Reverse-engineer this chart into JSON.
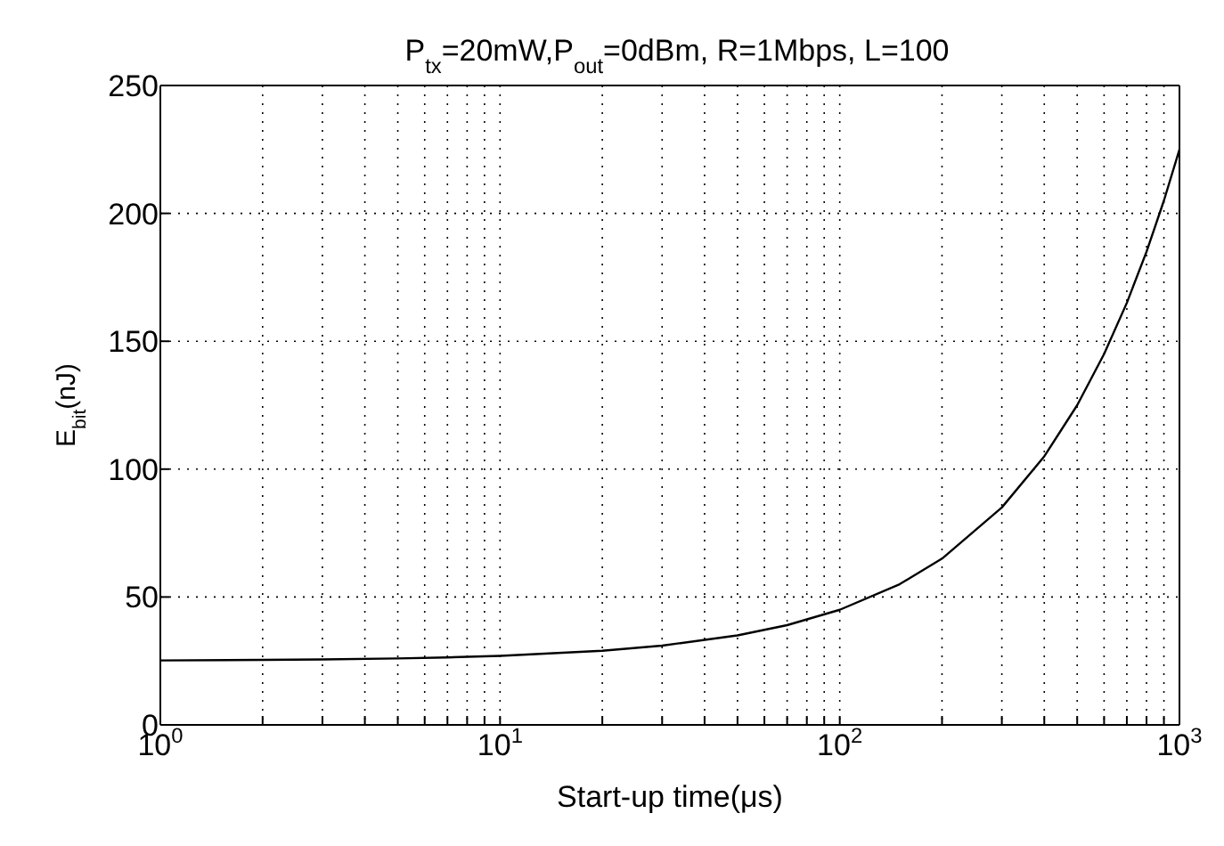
{
  "chart_data": {
    "type": "line",
    "title": "P$_{tx}$=20mW,P$_{out}$=0dBm, R=1Mbps, L=100",
    "xlabel": "Start-up time(μs)",
    "ylabel": "E$_{bit}$(nJ)",
    "x": [
      1,
      2,
      3,
      5,
      7,
      10,
      20,
      30,
      50,
      70,
      100,
      150,
      200,
      300,
      400,
      500,
      600,
      700,
      800,
      900,
      1000
    ],
    "series": [
      {
        "color": "#000000",
        "values": [
          25.2,
          25.4,
          25.6,
          26,
          26.4,
          27,
          29,
          31,
          35,
          39,
          45,
          55,
          65,
          85,
          105,
          125,
          145,
          165,
          185,
          205,
          225
        ]
      }
    ],
    "log": "x",
    "xlim": [
      1,
      1000
    ],
    "ylim": [
      0,
      250
    ],
    "xticks": [
      {
        "value": 1,
        "label": "10$^{0}$"
      },
      {
        "value": 2,
        "label": null
      },
      {
        "value": 3,
        "label": null
      },
      {
        "value": 4,
        "label": null
      },
      {
        "value": 5,
        "label": null
      },
      {
        "value": 6,
        "label": null
      },
      {
        "value": 7,
        "label": null
      },
      {
        "value": 8,
        "label": null
      },
      {
        "value": 9,
        "label": null
      },
      {
        "value": 10,
        "label": "10$^{1}$"
      },
      {
        "value": 20,
        "label": null
      },
      {
        "value": 30,
        "label": null
      },
      {
        "value": 40,
        "label": null
      },
      {
        "value": 50,
        "label": null
      },
      {
        "value": 60,
        "label": null
      },
      {
        "value": 70,
        "label": null
      },
      {
        "value": 80,
        "label": null
      },
      {
        "value": 90,
        "label": null
      },
      {
        "value": 100,
        "label": "10$^{2}$"
      },
      {
        "value": 200,
        "label": null
      },
      {
        "value": 300,
        "label": null
      },
      {
        "value": 400,
        "label": null
      },
      {
        "value": 500,
        "label": null
      },
      {
        "value": 600,
        "label": null
      },
      {
        "value": 700,
        "label": null
      },
      {
        "value": 800,
        "label": null
      },
      {
        "value": 900,
        "label": null
      },
      {
        "value": 1000,
        "label": "10$^{3}$"
      }
    ],
    "yticks": [
      0,
      50,
      100,
      150,
      200,
      250
    ],
    "grid": true,
    "marker": "none",
    "line_style": "solid"
  }
}
